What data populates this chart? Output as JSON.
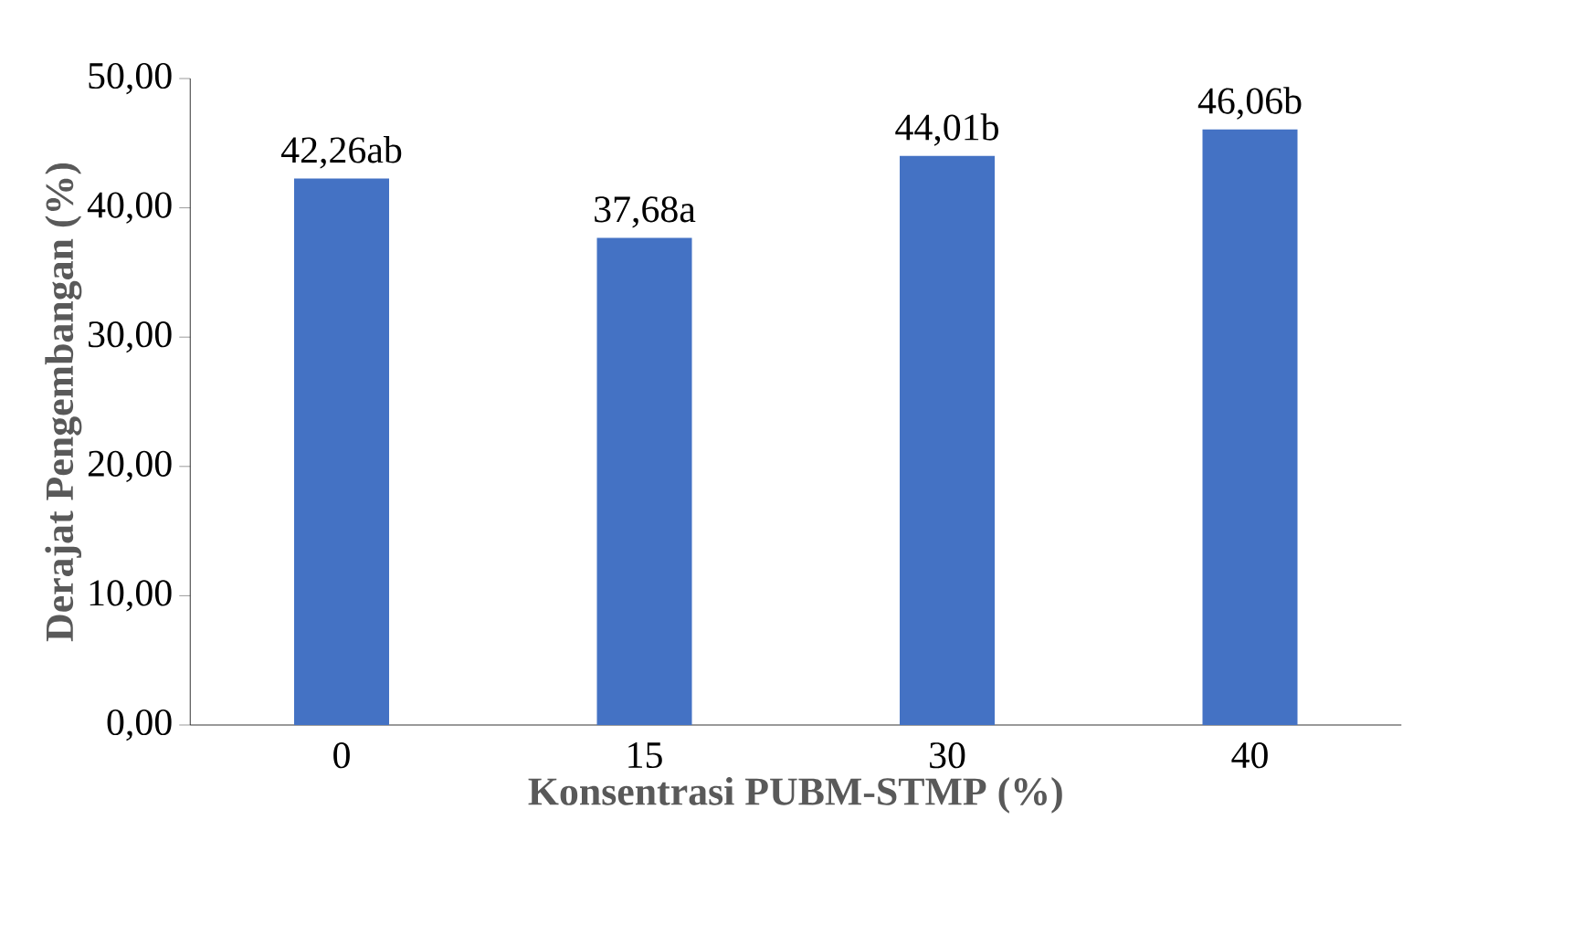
{
  "chart_data": {
    "type": "bar",
    "xlabel": "Konsentrasi PUBM-STMP (%)",
    "ylabel": "Derajat Pengembangan (%)",
    "categories": [
      "0",
      "15",
      "30",
      "40"
    ],
    "values": [
      42.26,
      37.68,
      44.01,
      46.06
    ],
    "value_labels": [
      "42,26ab",
      "37,68a",
      "44,01b",
      "46,06b"
    ],
    "color": "#4472c4",
    "ylim": [
      0,
      50
    ],
    "yticks": [
      {
        "value": 0,
        "label": "0,00"
      },
      {
        "value": 10,
        "label": "10,00"
      },
      {
        "value": 20,
        "label": "20,00"
      },
      {
        "value": 30,
        "label": "30,00"
      },
      {
        "value": 40,
        "label": "40,00"
      },
      {
        "value": 50,
        "label": "50,00"
      }
    ],
    "grid": false
  }
}
